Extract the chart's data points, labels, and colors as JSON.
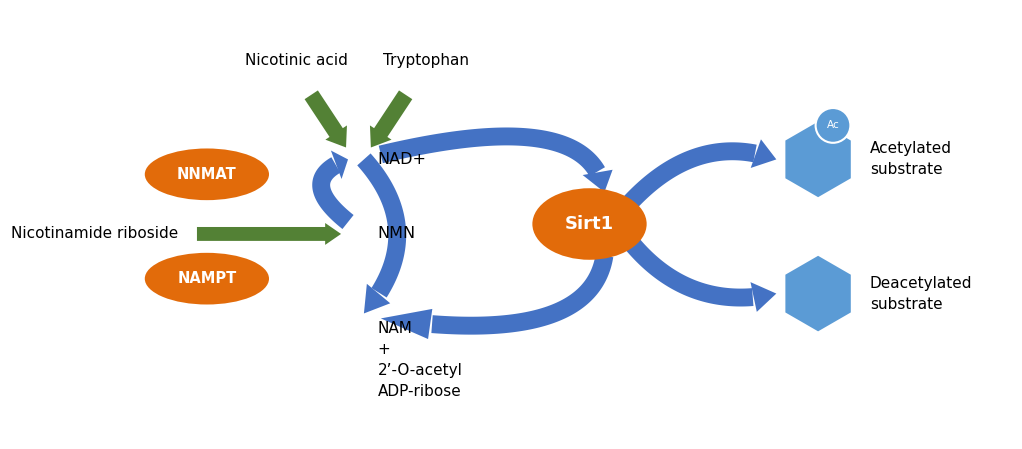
{
  "bg_color": "#ffffff",
  "blue_color": "#4472C4",
  "blue_light": "#5B9BD5",
  "green_color": "#538135",
  "orange_color": "#E26B0A",
  "labels": {
    "nicotinic_acid": "Nicotinic acid",
    "tryptophan": "Tryptophan",
    "nad": "NAD+",
    "nmn": "NMN",
    "nam": "NAM\n+\n2’-O-acetyl\nADP-ribose",
    "nnmat": "NNMAT",
    "nampt": "NAMPT",
    "sirt1": "Sirt1",
    "nicotinamide_riboside": "Nicotinamide riboside",
    "acetylated": "Acetylated\nsubstrate",
    "deacetylated": "Deacetylated\nsubstrate",
    "ac": "Ac"
  },
  "figsize": [
    10.22,
    4.49
  ],
  "dpi": 100
}
